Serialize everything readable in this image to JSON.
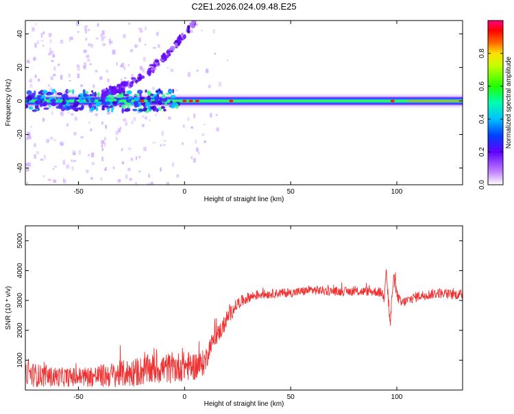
{
  "title": "C2E1.2026.024.09.48.E25",
  "colors": {
    "snr_line": "#f03030",
    "frame": "#000000"
  },
  "chart_data": [
    {
      "type": "heatmap",
      "xlabel": "Height of straight line (km)",
      "ylabel": "Frequency (Hz)",
      "xlim": [
        -75,
        131
      ],
      "ylim": [
        -50,
        48
      ],
      "x_ticks": [
        -50,
        0,
        50,
        100
      ],
      "y_ticks": [
        -40,
        -20,
        0,
        20,
        40
      ],
      "grid": false,
      "colorbar": {
        "label": "Normalized spectral amplitude",
        "range": [
          0,
          1
        ],
        "ticks": [
          0.0,
          0.2,
          0.4,
          0.6,
          0.8
        ],
        "colormap": "rainbow (white-purple-blue-cyan-green-yellow-red-magenta)"
      },
      "features": [
        {
          "name": "main-band",
          "frequency_hz": 0,
          "x_range": [
            -75,
            131
          ],
          "amplitude_low_x": 0.25,
          "amplitude_high_x": 0.55
        },
        {
          "name": "rising-arc",
          "x_range": [
            -40,
            5
          ],
          "frequency_hz_range": [
            5,
            48
          ]
        },
        {
          "name": "hot-spots",
          "x": [
            -20,
            0,
            3,
            6,
            22,
            98
          ],
          "amplitude": 0.9
        }
      ]
    },
    {
      "type": "line",
      "xlabel": "Height of straight line (km)",
      "ylabel": "SNR (10 * v/v)",
      "xlim": [
        -75,
        131
      ],
      "ylim": [
        0,
        5500
      ],
      "x_ticks": [
        -50,
        0,
        50,
        100
      ],
      "y_ticks": [
        1000,
        2000,
        3000,
        4000,
        5000
      ],
      "grid": false,
      "series": [
        {
          "x": [
            -75,
            -65,
            -55,
            -45,
            -35,
            -25,
            -15,
            -5,
            0,
            5,
            8,
            10,
            12,
            15,
            18,
            20,
            22,
            25,
            30,
            35,
            40,
            45,
            50,
            55,
            60,
            65,
            70,
            75,
            80,
            85,
            90,
            93,
            94,
            95,
            96,
            97,
            98,
            99,
            100,
            102,
            105,
            110,
            115,
            120,
            125,
            131
          ],
          "y": [
            550,
            450,
            430,
            450,
            500,
            580,
            700,
            750,
            800,
            800,
            850,
            1000,
            1500,
            1800,
            2100,
            2400,
            2600,
            2900,
            3100,
            3200,
            3220,
            3250,
            3250,
            3300,
            3350,
            3330,
            3300,
            3300,
            3300,
            3300,
            3300,
            3250,
            3100,
            4200,
            3000,
            2200,
            3500,
            3700,
            3200,
            2900,
            3000,
            3150,
            3200,
            3250,
            3200,
            3200
          ],
          "noise_amplitude": [
            450,
            350,
            320,
            350,
            420,
            480,
            520,
            520,
            500,
            480,
            450,
            420,
            300,
            300,
            300,
            280,
            250,
            200,
            180,
            160,
            150,
            150,
            150,
            150,
            160,
            150,
            150,
            150,
            150,
            150,
            160,
            160,
            200,
            400,
            400,
            300,
            300,
            250,
            200,
            180,
            170,
            170,
            170,
            170,
            170,
            170
          ]
        }
      ]
    }
  ]
}
